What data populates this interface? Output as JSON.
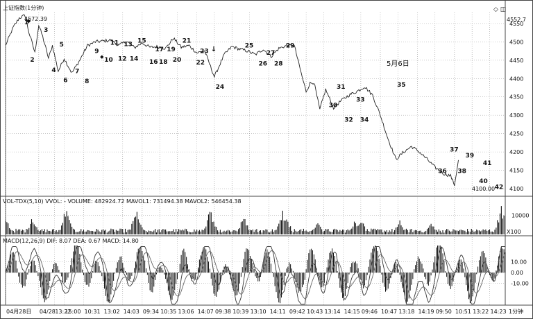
{
  "chart_data": [
    {
      "type": "line",
      "title": "上证指数(1分钟)",
      "top_right_value": "4552.7",
      "high_annotation": "4572.39",
      "low_annotation": "4100.00",
      "date_annotation": "5月6日",
      "ylim": [
        4085,
        4580
      ],
      "yticks": [
        4100,
        4150,
        4200,
        4250,
        4300,
        4350,
        4400,
        4450,
        4500,
        4550
      ],
      "grid": true,
      "anchors": [
        [
          0,
          4490
        ],
        [
          2,
          4540
        ],
        [
          3.5,
          4565
        ],
        [
          5,
          4572.39
        ],
        [
          6,
          4525
        ],
        [
          7,
          4490
        ],
        [
          7.5,
          4470
        ],
        [
          8.5,
          4545
        ],
        [
          9.5,
          4515
        ],
        [
          11,
          4455
        ],
        [
          12,
          4490
        ],
        [
          13.5,
          4420
        ],
        [
          15,
          4455
        ],
        [
          17,
          4415
        ],
        [
          19,
          4450
        ],
        [
          21,
          4490
        ],
        [
          23,
          4500
        ],
        [
          25,
          4502
        ],
        [
          27,
          4505
        ],
        [
          29,
          4490
        ],
        [
          31,
          4502
        ],
        [
          33,
          4484
        ],
        [
          35,
          4497
        ],
        [
          37,
          4485
        ],
        [
          39,
          4487
        ],
        [
          41,
          4482
        ],
        [
          43,
          4510
        ],
        [
          45,
          4485
        ],
        [
          47,
          4490
        ],
        [
          49,
          4470
        ],
        [
          51,
          4475
        ],
        [
          53.5,
          4405
        ],
        [
          56,
          4465
        ],
        [
          58,
          4487
        ],
        [
          60,
          4480
        ],
        [
          62,
          4475
        ],
        [
          64,
          4465
        ],
        [
          66,
          4480
        ],
        [
          68,
          4460
        ],
        [
          70,
          4482
        ],
        [
          72,
          4490
        ],
        [
          74,
          4488
        ],
        [
          76,
          4403
        ],
        [
          77,
          4365
        ],
        [
          78,
          4387
        ],
        [
          79,
          4390
        ],
        [
          80.5,
          4315
        ],
        [
          82,
          4370
        ],
        [
          83,
          4345
        ],
        [
          84,
          4320
        ],
        [
          86,
          4340
        ],
        [
          88,
          4355
        ],
        [
          90,
          4365
        ],
        [
          92,
          4378
        ],
        [
          94,
          4355
        ],
        [
          96,
          4300
        ],
        [
          98,
          4235
        ],
        [
          100,
          4180
        ],
        [
          102,
          4200
        ],
        [
          104,
          4215
        ],
        [
          106,
          4200
        ],
        [
          108,
          4180
        ],
        [
          110,
          4158
        ],
        [
          112,
          4142
        ],
        [
          114,
          4135
        ],
        [
          115,
          4110
        ],
        [
          116,
          4178
        ]
      ],
      "wave_labels": [
        {
          "text": "1",
          "x": 5.5,
          "y": 4555
        },
        {
          "text": "2",
          "x": 7.0,
          "y": 4453
        },
        {
          "text": "3",
          "x": 10.5,
          "y": 4535
        },
        {
          "text": "4",
          "x": 12.5,
          "y": 4425
        },
        {
          "text": "5",
          "x": 14.5,
          "y": 4495
        },
        {
          "text": "6",
          "x": 15.5,
          "y": 4398
        },
        {
          "text": "7",
          "x": 18.5,
          "y": 4422
        },
        {
          "text": "8",
          "x": 21.0,
          "y": 4395
        },
        {
          "text": "9",
          "x": 23.5,
          "y": 4477
        },
        {
          "text": "10",
          "x": 26.0,
          "y": 4453
        },
        {
          "text": "11",
          "x": 27.5,
          "y": 4500
        },
        {
          "text": "12",
          "x": 29.5,
          "y": 4456
        },
        {
          "text": "13",
          "x": 31.0,
          "y": 4496
        },
        {
          "text": "14",
          "x": 32.5,
          "y": 4456
        },
        {
          "text": "15",
          "x": 34.5,
          "y": 4505
        },
        {
          "text": "16",
          "x": 37.5,
          "y": 4448
        },
        {
          "text": "17",
          "x": 39.0,
          "y": 4482
        },
        {
          "text": "18",
          "x": 40.0,
          "y": 4448
        },
        {
          "text": "19",
          "x": 42.0,
          "y": 4482
        },
        {
          "text": "20",
          "x": 43.5,
          "y": 4453
        },
        {
          "text": "21",
          "x": 46.0,
          "y": 4505
        },
        {
          "text": "22",
          "x": 49.5,
          "y": 4446
        },
        {
          "text": "23",
          "x": 50.5,
          "y": 4477
        },
        {
          "text": "24",
          "x": 54.5,
          "y": 4380
        },
        {
          "text": "25",
          "x": 62.0,
          "y": 4492
        },
        {
          "text": "26",
          "x": 65.5,
          "y": 4443
        },
        {
          "text": "27",
          "x": 67.5,
          "y": 4472
        },
        {
          "text": "28",
          "x": 69.5,
          "y": 4443
        },
        {
          "text": "29",
          "x": 72.5,
          "y": 4492
        },
        {
          "text": "30",
          "x": 83.5,
          "y": 4330
        },
        {
          "text": "31",
          "x": 85.5,
          "y": 4380
        },
        {
          "text": "32",
          "x": 87.5,
          "y": 4290
        },
        {
          "text": "33",
          "x": 90.5,
          "y": 4345
        },
        {
          "text": "34",
          "x": 91.5,
          "y": 4290
        },
        {
          "text": "35",
          "x": 101.0,
          "y": 4385
        },
        {
          "text": "36",
          "x": 111.5,
          "y": 4150
        },
        {
          "text": "37",
          "x": 114.5,
          "y": 4209
        },
        {
          "text": "38",
          "x": 116.5,
          "y": 4150
        },
        {
          "text": "39",
          "x": 118.5,
          "y": 4193
        },
        {
          "text": "40",
          "x": 122.0,
          "y": 4123
        },
        {
          "text": "41",
          "x": 123.0,
          "y": 4172
        },
        {
          "text": "42",
          "x": 126.0,
          "y": 4107
        }
      ]
    },
    {
      "type": "bar",
      "title": "VOL-TDX(5,10) VVOL: -   VOLUME: 482924.72  MAVOL1: 731494.38  MAVOL2: 546454.38",
      "ylim": [
        0,
        15000
      ],
      "yticks": [
        10000
      ],
      "unit_label": "X100",
      "spikes": [
        [
          0,
          9000
        ],
        [
          7,
          10500
        ],
        [
          15.5,
          15500
        ],
        [
          16,
          9000
        ],
        [
          33.5,
          13500
        ],
        [
          34,
          8000
        ],
        [
          52.5,
          14500
        ],
        [
          53,
          8500
        ],
        [
          61,
          10000
        ],
        [
          71,
          14000
        ],
        [
          72,
          9000
        ],
        [
          80,
          7000
        ],
        [
          89.5,
          8500
        ],
        [
          91,
          9000
        ],
        [
          101,
          7500
        ],
        [
          109,
          6500
        ],
        [
          127,
          15500
        ]
      ],
      "base": 1800
    },
    {
      "type": "bar",
      "title": "MACD(12,26,9) DIF: 8.07  DEA: 0.67  MACD: 14.80",
      "ylim": [
        -30,
        25
      ],
      "yticks": [
        10,
        0,
        -10
      ],
      "grid": true
    }
  ],
  "x_axis": {
    "n_slots": 128,
    "labels": [
      {
        "t": "04月28日",
        "i": 0
      },
      {
        "t": "04/28",
        "i": 8.5
      },
      {
        "t": "13:22",
        "i": 12.5
      },
      {
        "t": "15:00",
        "i": 15
      },
      {
        "t": "10:31",
        "i": 20
      },
      {
        "t": "13:02",
        "i": 25
      },
      {
        "t": "14:03",
        "i": 30
      },
      {
        "t": "09:34",
        "i": 35
      },
      {
        "t": "10:35",
        "i": 39.5
      },
      {
        "t": "13:06",
        "i": 44
      },
      {
        "t": "14:07",
        "i": 49
      },
      {
        "t": "09:38",
        "i": 53.5
      },
      {
        "t": "10:39",
        "i": 58
      },
      {
        "t": "13:10",
        "i": 62.5
      },
      {
        "t": "14:11",
        "i": 67.5
      },
      {
        "t": "09:42",
        "i": 72.5
      },
      {
        "t": "10:43",
        "i": 77
      },
      {
        "t": "13:14",
        "i": 81.5
      },
      {
        "t": "14:15",
        "i": 86.5
      },
      {
        "t": "09:46",
        "i": 91
      },
      {
        "t": "10:47",
        "i": 96
      },
      {
        "t": "13:18",
        "i": 100.5
      },
      {
        "t": "14:19",
        "i": 105.5
      },
      {
        "t": "09:50",
        "i": 110
      },
      {
        "t": "10:51",
        "i": 115
      },
      {
        "t": "13:22",
        "i": 119.5
      },
      {
        "t": "14:23",
        "i": 124
      }
    ],
    "corner_label": "1分钟"
  }
}
